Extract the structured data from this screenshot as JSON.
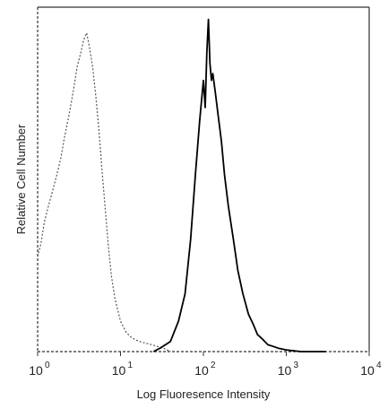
{
  "chart_data": {
    "type": "line",
    "title": "",
    "xlabel": "Log Fluoresence Intensity",
    "ylabel": "Relative Cell Number",
    "x_scale": "log",
    "xlim": [
      1,
      10000
    ],
    "ylim": [
      0,
      100
    ],
    "x_ticks": [
      {
        "base": "10",
        "exp": "0",
        "value": 1
      },
      {
        "base": "10",
        "exp": "1",
        "value": 10
      },
      {
        "base": "10",
        "exp": "2",
        "value": 100
      },
      {
        "base": "10",
        "exp": "3",
        "value": 1000
      },
      {
        "base": "10",
        "exp": "4",
        "value": 10000
      }
    ],
    "grid": false,
    "legend": "none",
    "series": [
      {
        "style": "dotted",
        "color": "#555555",
        "x": [
          1.0,
          1.1,
          1.2,
          1.35,
          1.5,
          1.7,
          1.9,
          2.1,
          2.4,
          2.7,
          3.0,
          3.3,
          3.6,
          3.9,
          4.2,
          4.6,
          5.0,
          5.5,
          6.0,
          6.6,
          7.2,
          7.8,
          8.5,
          9.3,
          10,
          11.5,
          13,
          15,
          17,
          20,
          24,
          28,
          33,
          40
        ],
        "y": [
          28,
          32,
          38,
          43,
          47,
          52,
          57,
          63,
          70,
          77,
          84,
          88,
          92,
          94,
          90,
          84,
          76,
          65,
          53,
          41,
          30,
          22,
          16,
          12,
          9,
          6,
          4.5,
          3.5,
          3,
          2.5,
          2,
          1.5,
          1,
          0
        ]
      },
      {
        "style": "solid",
        "color": "#000000",
        "x": [
          25,
          30,
          40,
          50,
          60,
          70,
          80,
          90,
          100,
          105,
          110,
          115,
          120,
          125,
          130,
          140,
          150,
          165,
          180,
          200,
          230,
          260,
          300,
          350,
          400,
          450,
          500,
          600,
          700,
          800,
          1000,
          1500,
          2000,
          3000
        ],
        "y": [
          0,
          1,
          3,
          9,
          17,
          33,
          52,
          68,
          80,
          72,
          88,
          98,
          85,
          80,
          82,
          76,
          70,
          62,
          52,
          43,
          33,
          24,
          17,
          11,
          8,
          5,
          4,
          2,
          1.5,
          1,
          0.5,
          0,
          0,
          0
        ]
      }
    ]
  }
}
